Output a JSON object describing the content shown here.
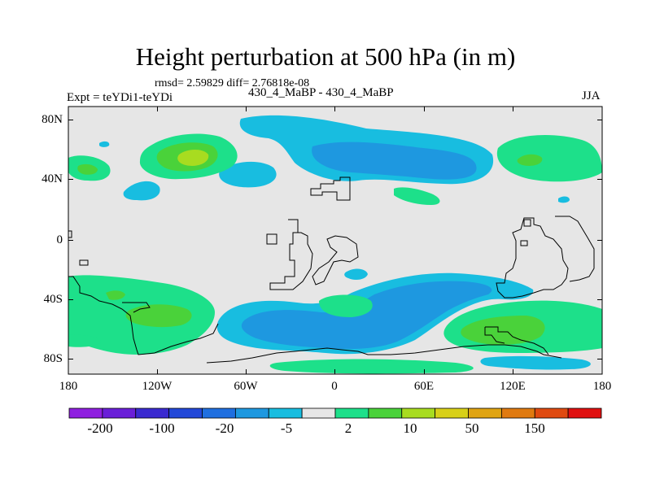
{
  "title": "Height perturbation at 500 hPa (in m)",
  "stats_line": "rmsd= 2.59829  diff= 2.76818e-08",
  "experiment_label": "Expt = teYDi1-teYDi",
  "cases_label": "430_4_MaBP - 430_4_MaBP",
  "season": "JJA",
  "y_axis": {
    "ticks": [
      "80N",
      "40N",
      "0",
      "40S",
      "80S"
    ]
  },
  "x_axis": {
    "ticks": [
      "180",
      "120W",
      "60W",
      "0",
      "60E",
      "120E",
      "180"
    ]
  },
  "colorbar": {
    "colors": [
      "#8f1fe0",
      "#6a1fd8",
      "#3a2ad0",
      "#2248d8",
      "#1f6fe0",
      "#1e98e0",
      "#18bde0",
      "#e6e6e6",
      "#1de08a",
      "#4ad23a",
      "#a8dc20",
      "#d8d018",
      "#e0a412",
      "#e07a10",
      "#e04a10",
      "#e01010"
    ],
    "labels": [
      "-200",
      "-100",
      "-20",
      "-5",
      "2",
      "10",
      "50",
      "150"
    ]
  },
  "map_colors": {
    "background": "#e6e6e6",
    "light_blue": "#18bde0",
    "mid_blue": "#1e98e0",
    "green": "#1de08a",
    "bright_green": "#4ad23a",
    "yellow_green": "#a8dc20",
    "coastline": "#000000"
  }
}
